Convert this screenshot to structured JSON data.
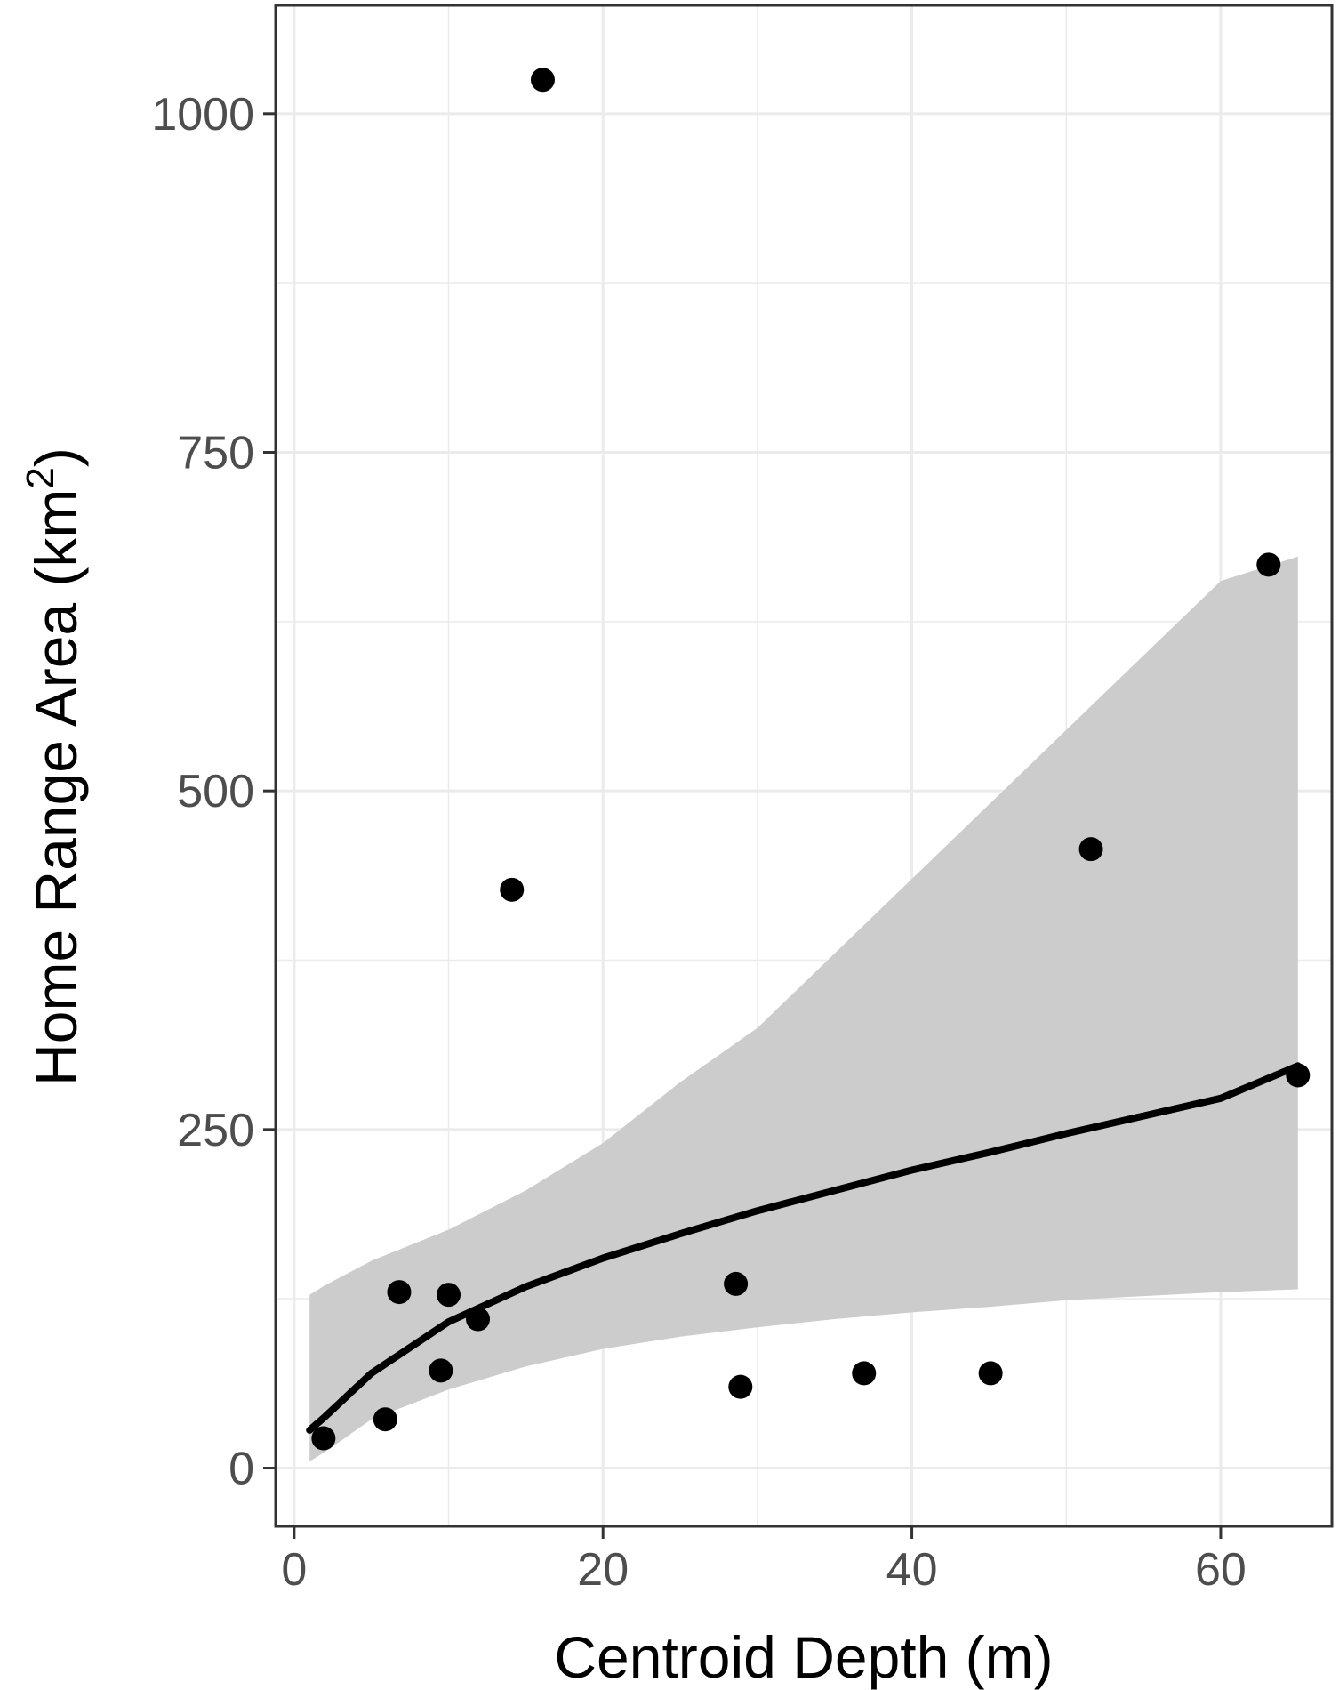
{
  "chart_data": {
    "type": "scatter",
    "xlabel": "Centroid Depth (m)",
    "ylabel": "Home Range Area (km",
    "ylabel_superscript": "2",
    "ylabel_suffix": ")",
    "xlim": [
      -1.2,
      67.2
    ],
    "ylim": [
      -43,
      1080
    ],
    "x_ticks": [
      0,
      20,
      40,
      60
    ],
    "x_tick_labels": [
      "0",
      "20",
      "40",
      "60"
    ],
    "y_ticks": [
      0,
      250,
      500,
      750,
      1000
    ],
    "y_tick_labels": [
      "0",
      "250",
      "500",
      "750",
      "1000"
    ],
    "x_minor_ticks": [
      10,
      30,
      50
    ],
    "y_minor_ticks": [
      125,
      375,
      625,
      875
    ],
    "grid": true,
    "colors": {
      "points": "#000000",
      "fit_line": "#000000",
      "ribbon": "#cccccc",
      "grid": "#ebebeb",
      "panel_border": "#333333",
      "tick_label": "#4d4d4d"
    },
    "points": [
      {
        "x": 1.9,
        "y": 22
      },
      {
        "x": 5.9,
        "y": 36
      },
      {
        "x": 6.8,
        "y": 130
      },
      {
        "x": 9.5,
        "y": 72
      },
      {
        "x": 10.0,
        "y": 128
      },
      {
        "x": 11.9,
        "y": 110
      },
      {
        "x": 14.1,
        "y": 427
      },
      {
        "x": 16.1,
        "y": 1025
      },
      {
        "x": 28.6,
        "y": 136
      },
      {
        "x": 28.9,
        "y": 60
      },
      {
        "x": 36.9,
        "y": 70
      },
      {
        "x": 45.1,
        "y": 70
      },
      {
        "x": 51.6,
        "y": 457
      },
      {
        "x": 63.1,
        "y": 667
      },
      {
        "x": 65.0,
        "y": 290
      }
    ],
    "fit": {
      "x": [
        1,
        2,
        5,
        10,
        15,
        20,
        25,
        30,
        35,
        40,
        45,
        50,
        55,
        60,
        65
      ],
      "y": [
        28,
        38,
        70,
        108,
        134,
        155,
        173,
        190,
        205,
        220,
        233,
        247,
        260,
        273,
        297
      ],
      "lower": [
        5,
        12,
        36,
        58,
        75,
        88,
        97,
        104,
        110,
        115,
        119,
        124,
        127,
        130,
        132
      ],
      "upper": [
        128,
        135,
        153,
        176,
        205,
        240,
        285,
        325,
        380,
        435,
        490,
        545,
        600,
        655,
        673
      ]
    }
  }
}
